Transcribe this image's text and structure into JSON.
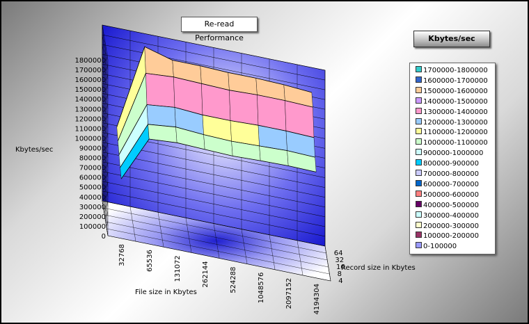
{
  "chart_data": {
    "type": "surface",
    "title": "Re-read Performance",
    "ylabel": "Kbytes/sec",
    "xlabel": "File size in Kbytes",
    "zlabel": "Record size in Kbytes",
    "ylim": [
      0,
      1800000
    ],
    "y_ticks": [
      "1800000",
      "1700000",
      "1600000",
      "1500000",
      "1400000",
      "1300000",
      "1200000",
      "1100000",
      "1000000",
      "900000",
      "800000",
      "700000",
      "600000",
      "500000",
      "400000",
      "300000",
      "200000",
      "100000",
      "0"
    ],
    "x_categories": [
      "32768",
      "65536",
      "131072",
      "262144",
      "524288",
      "1048576",
      "2097152",
      "4194304"
    ],
    "z_categories": [
      "4",
      "8",
      "16",
      "32",
      "64"
    ],
    "values_by_record_size": [
      {
        "record": "4",
        "values": [
          575000,
          1040000,
          1060000,
          1050000,
          1040000,
          1050000,
          1055000,
          1050000
        ]
      },
      {
        "record": "8",
        "values": [
          620000,
          1120000,
          1150000,
          1130000,
          1120000,
          1130000,
          1140000,
          1130000
        ]
      },
      {
        "record": "16",
        "values": [
          680000,
          1250000,
          1280000,
          1260000,
          1260000,
          1270000,
          1270000,
          1260000
        ]
      },
      {
        "record": "32",
        "values": [
          750000,
          1500000,
          1520000,
          1510000,
          1500000,
          1510000,
          1510000,
          1500000
        ]
      },
      {
        "record": "64",
        "values": [
          820000,
          1700000,
          1620000,
          1620000,
          1610000,
          1610000,
          1600000,
          1580000
        ]
      }
    ],
    "legend_title": "Kbytes/sec",
    "legend": [
      {
        "label": "1700000-1800000",
        "color": "#33cccc"
      },
      {
        "label": "1600000-1700000",
        "color": "#3366cc"
      },
      {
        "label": "1500000-1600000",
        "color": "#ffcc99"
      },
      {
        "label": "1400000-1500000",
        "color": "#cc99ff"
      },
      {
        "label": "1300000-1400000",
        "color": "#ff99cc"
      },
      {
        "label": "1200000-1300000",
        "color": "#99ccff"
      },
      {
        "label": "1100000-1200000",
        "color": "#ffff99"
      },
      {
        "label": "1000000-1100000",
        "color": "#ccffcc"
      },
      {
        "label": "900000-1000000",
        "color": "#ccffff"
      },
      {
        "label": "800000-900000",
        "color": "#00ccff"
      },
      {
        "label": "700000-800000",
        "color": "#ccccff"
      },
      {
        "label": "600000-700000",
        "color": "#0066cc"
      },
      {
        "label": "500000-600000",
        "color": "#ff8080"
      },
      {
        "label": "400000-500000",
        "color": "#660066"
      },
      {
        "label": "300000-400000",
        "color": "#ccffff"
      },
      {
        "label": "200000-300000",
        "color": "#ffffcc"
      },
      {
        "label": "100000-200000",
        "color": "#993366"
      },
      {
        "label": "0-100000",
        "color": "#9999ff"
      }
    ],
    "legend_position": "right",
    "grid": true
  }
}
